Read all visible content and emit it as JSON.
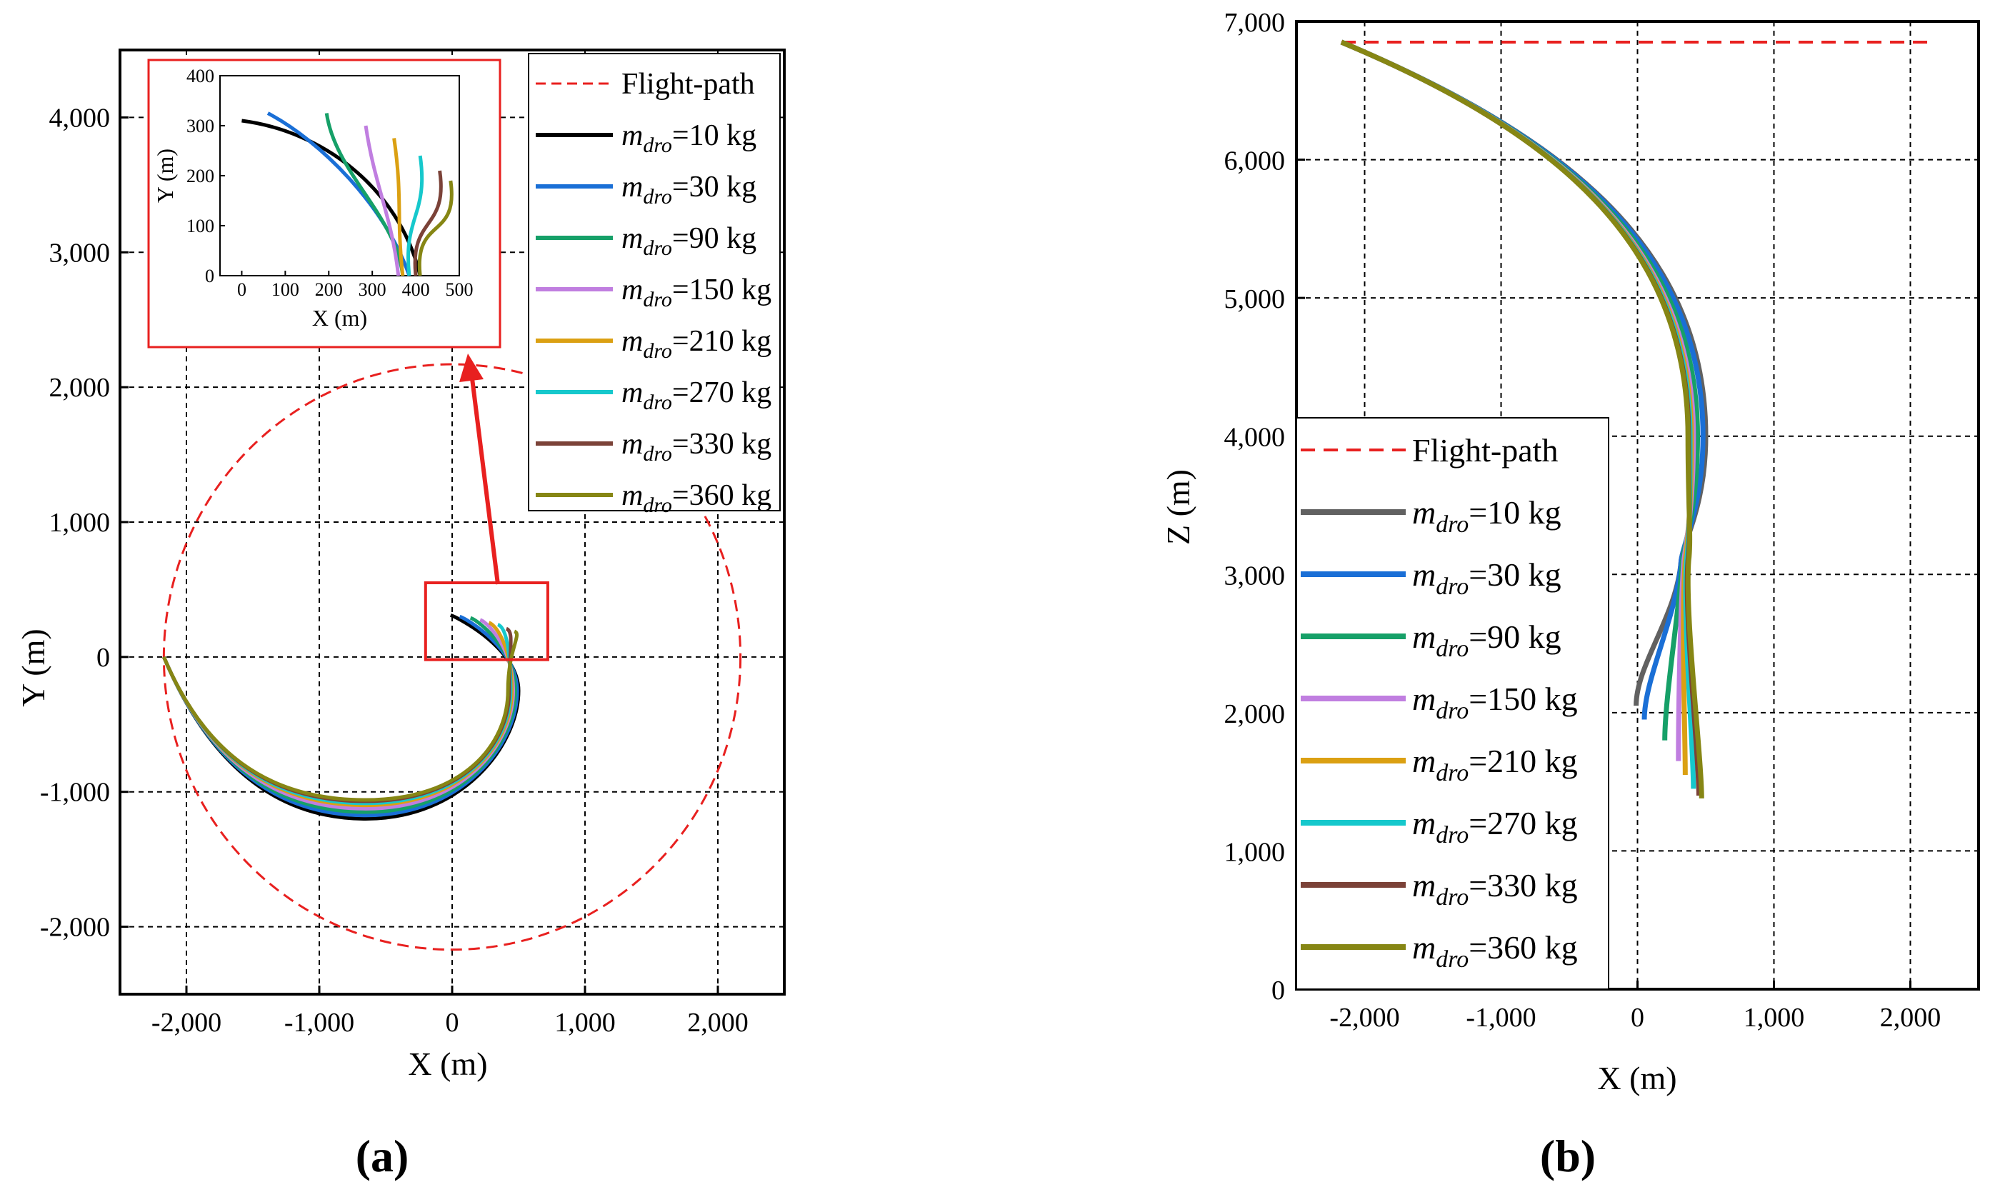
{
  "figure": {
    "panel_a_label": "(a)",
    "panel_b_label": "(b)"
  },
  "chart_data": [
    {
      "type": "line",
      "panel": "a",
      "xlabel": "X (m)",
      "ylabel": "Y (m)",
      "xlim": [
        -2500,
        2500
      ],
      "ylim": [
        -2500,
        4500
      ],
      "xticks": [
        -2000,
        -1000,
        0,
        1000,
        2000
      ],
      "xtick_labels": [
        "-2,000",
        "-1,000",
        "0",
        "1,000",
        "2,000"
      ],
      "yticks": [
        -2000,
        -1000,
        0,
        1000,
        2000,
        3000,
        4000
      ],
      "ytick_labels": [
        "-2,000",
        "-1,000",
        "0",
        "1,000",
        "2,000",
        "3,000",
        "4,000"
      ],
      "grid": true,
      "legend_position": "top-right",
      "flight_path": {
        "name": "Flight-path",
        "color": "#e8201f",
        "style": "dashed",
        "center": [
          0,
          0
        ],
        "radius": 2170
      },
      "series": [
        {
          "name": "m",
          "sub": "dro",
          "suffix": "=10 kg",
          "color": "#000000",
          "inset_color": "#000000",
          "start": [
            -2170,
            0
          ],
          "turn_x": 500,
          "end": [
            -10,
            310
          ],
          "spiral_dy": -1200
        },
        {
          "name": "m",
          "sub": "dro",
          "suffix": "=30 kg",
          "color": "#1a6fd6",
          "inset_color": "#1a6fd6",
          "start": [
            -2170,
            0
          ],
          "turn_x": 490,
          "end": [
            60,
            300
          ],
          "spiral_dy": -1175
        },
        {
          "name": "m",
          "sub": "dro",
          "suffix": "=90 kg",
          "color": "#16a068",
          "inset_color": "#16a068",
          "start": [
            -2170,
            0
          ],
          "turn_x": 475,
          "end": [
            190,
            290
          ],
          "spiral_dy": -1150
        },
        {
          "name": "m",
          "sub": "dro",
          "suffix": "=150 kg",
          "color": "#c07ee0",
          "inset_color": "#c07ee0",
          "start": [
            -2170,
            0
          ],
          "turn_x": 460,
          "end": [
            280,
            275
          ],
          "spiral_dy": -1125
        },
        {
          "name": "m",
          "sub": "dro",
          "suffix": "=210 kg",
          "color": "#dba012",
          "inset_color": "#dba012",
          "start": [
            -2170,
            0
          ],
          "turn_x": 450,
          "end": [
            335,
            255
          ],
          "spiral_dy": -1100
        },
        {
          "name": "m",
          "sub": "dro",
          "suffix": "=270 kg",
          "color": "#16c8cc",
          "inset_color": "#16c8cc",
          "start": [
            -2170,
            0
          ],
          "turn_x": 440,
          "end": [
            395,
            240
          ],
          "spiral_dy": -1085
        },
        {
          "name": "m",
          "sub": "dro",
          "suffix": "=330 kg",
          "color": "#7b4238",
          "inset_color": "#7b4238",
          "start": [
            -2170,
            0
          ],
          "turn_x": 430,
          "end": [
            440,
            210
          ],
          "spiral_dy": -1070
        },
        {
          "name": "m",
          "sub": "dro",
          "suffix": "=360 kg",
          "color": "#868614",
          "inset_color": "#868614",
          "start": [
            -2170,
            0
          ],
          "turn_x": 420,
          "end": [
            470,
            190
          ],
          "spiral_dy": -1060
        }
      ],
      "inset": {
        "xlabel": "X (m)",
        "ylabel": "Y (m)",
        "xlim": [
          -50,
          500
        ],
        "ylim": [
          0,
          400
        ],
        "xticks": [
          0,
          100,
          200,
          300,
          400,
          500
        ],
        "yticks": [
          0,
          100,
          200,
          300,
          400
        ],
        "curves": [
          {
            "top": [
              0,
              310
            ],
            "bottom": [
              410,
              0
            ]
          },
          {
            "top": [
              60,
              325
            ],
            "bottom": [
              385,
              0
            ]
          },
          {
            "top": [
              195,
              325
            ],
            "bottom": [
              370,
              0
            ]
          },
          {
            "top": [
              285,
              300
            ],
            "bottom": [
              360,
              0
            ]
          },
          {
            "top": [
              350,
              275
            ],
            "bottom": [
              370,
              0
            ]
          },
          {
            "top": [
              410,
              240
            ],
            "bottom": [
              385,
              0
            ]
          },
          {
            "top": [
              455,
              210
            ],
            "bottom": [
              400,
              0
            ]
          },
          {
            "top": [
              480,
              190
            ],
            "bottom": [
              410,
              0
            ]
          }
        ]
      }
    },
    {
      "type": "line",
      "panel": "b",
      "xlabel": "X (m)",
      "ylabel": "Z (m)",
      "xlim": [
        -2500,
        2500
      ],
      "ylim": [
        0,
        7000
      ],
      "xticks": [
        -2000,
        -1000,
        0,
        1000,
        2000
      ],
      "xtick_labels": [
        "-2,000",
        "-1,000",
        "0",
        "1,000",
        "2,000"
      ],
      "yticks": [
        0,
        1000,
        2000,
        3000,
        4000,
        5000,
        6000,
        7000
      ],
      "ytick_labels": [
        "0",
        "1,000",
        "2,000",
        "3,000",
        "4,000",
        "5,000",
        "6,000",
        "7,000"
      ],
      "grid": true,
      "legend_position": "middle-left",
      "flight_path": {
        "name": "Flight-path",
        "color": "#e8201f",
        "style": "dashed",
        "x_range": [
          -2170,
          2170
        ],
        "z": 6850
      },
      "series": [
        {
          "name": "m",
          "sub": "dro",
          "suffix": "=10 kg",
          "color": "#616161",
          "start": [
            -2170,
            6850
          ],
          "bulge_x": 500,
          "cross": [
            320,
            3100
          ],
          "end": [
            -10,
            2050
          ]
        },
        {
          "name": "m",
          "sub": "dro",
          "suffix": "=30 kg",
          "color": "#1a6fd6",
          "start": [
            -2170,
            6850
          ],
          "bulge_x": 480,
          "cross": [
            320,
            3100
          ],
          "end": [
            50,
            1950
          ]
        },
        {
          "name": "m",
          "sub": "dro",
          "suffix": "=90 kg",
          "color": "#16a068",
          "start": [
            -2170,
            6850
          ],
          "bulge_x": 440,
          "cross": [
            330,
            3100
          ],
          "end": [
            200,
            1800
          ]
        },
        {
          "name": "m",
          "sub": "dro",
          "suffix": "=150 kg",
          "color": "#c07ee0",
          "start": [
            -2170,
            6850
          ],
          "bulge_x": 410,
          "cross": [
            340,
            3100
          ],
          "end": [
            300,
            1650
          ]
        },
        {
          "name": "m",
          "sub": "dro",
          "suffix": "=210 kg",
          "color": "#dba012",
          "start": [
            -2170,
            6850
          ],
          "bulge_x": 395,
          "cross": [
            350,
            3100
          ],
          "end": [
            350,
            1550
          ]
        },
        {
          "name": "m",
          "sub": "dro",
          "suffix": "=270 kg",
          "color": "#16c8cc",
          "start": [
            -2170,
            6850
          ],
          "bulge_x": 385,
          "cross": [
            360,
            3100
          ],
          "end": [
            410,
            1450
          ]
        },
        {
          "name": "m",
          "sub": "dro",
          "suffix": "=330 kg",
          "color": "#7b4238",
          "start": [
            -2170,
            6850
          ],
          "bulge_x": 375,
          "cross": [
            370,
            3100
          ],
          "end": [
            450,
            1400
          ]
        },
        {
          "name": "m",
          "sub": "dro",
          "suffix": "=360 kg",
          "color": "#868614",
          "start": [
            -2170,
            6850
          ],
          "bulge_x": 370,
          "cross": [
            375,
            3100
          ],
          "end": [
            470,
            1380
          ]
        }
      ]
    }
  ]
}
